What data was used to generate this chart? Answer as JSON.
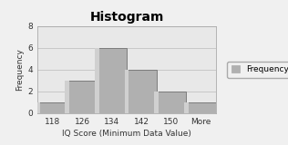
{
  "title": "Histogram",
  "xlabel": "IQ Score (Minimum Data Value)",
  "ylabel": "Frequency",
  "categories": [
    "118",
    "126",
    "134",
    "142",
    "150",
    "More"
  ],
  "values": [
    1,
    3,
    6,
    4,
    2,
    1
  ],
  "bar_color": "#b0b0b0",
  "bar_color_light": "#d0d0d0",
  "bar_edge_color": "#707070",
  "ylim": [
    0,
    8
  ],
  "yticks": [
    0,
    2,
    4,
    6,
    8
  ],
  "legend_label": "Frequency",
  "bg_color": "#f0f0f0",
  "plot_bg_color": "#e8e8e8",
  "title_fontsize": 10,
  "axis_fontsize": 6.5,
  "tick_fontsize": 6.5,
  "legend_fontsize": 6.5
}
